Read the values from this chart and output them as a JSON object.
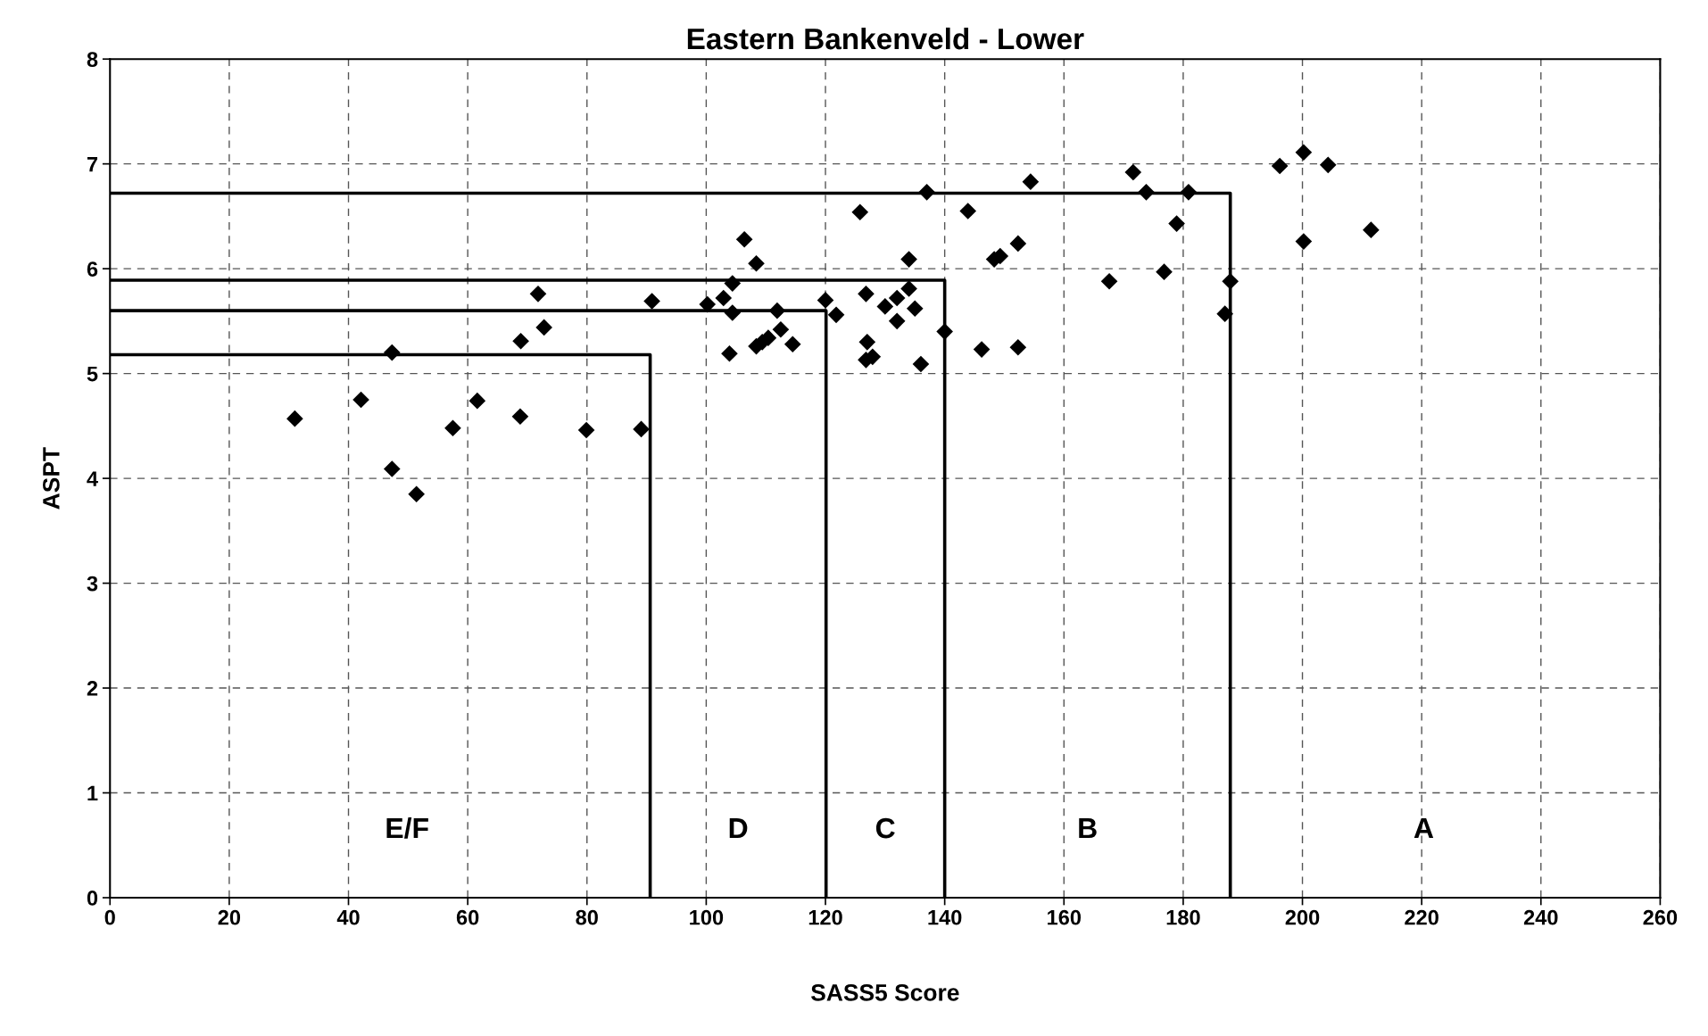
{
  "chart_data": {
    "type": "scatter",
    "title": "Eastern Bankenveld - Lower",
    "xlabel": "SASS5 Score",
    "ylabel": "ASPT",
    "xlim": [
      0,
      260
    ],
    "xticks": [
      0,
      20,
      40,
      60,
      80,
      100,
      120,
      140,
      160,
      180,
      200,
      220,
      240,
      260
    ],
    "ylim": [
      0,
      8
    ],
    "yticks": [
      0,
      1,
      2,
      3,
      4,
      5,
      6,
      7,
      8
    ],
    "grid": true,
    "series": [
      {
        "marker": "diamond",
        "color": "#000000",
        "x": [
          31.0,
          42.1,
          47.3,
          47.3,
          51.4,
          57.5,
          61.6,
          68.8,
          68.9,
          71.8,
          72.8,
          79.9,
          89.1,
          90.9,
          100.2,
          102.9,
          104.4,
          104.4,
          103.9,
          106.4,
          108.4,
          108.4,
          109.4,
          110.4,
          111.9,
          112.5,
          114.5,
          120.0,
          121.8,
          125.8,
          126.8,
          127.0,
          126.8,
          127.9,
          130.0,
          132.0,
          132.0,
          134.0,
          134.0,
          135.0,
          136.0,
          137.0,
          140.0,
          143.9,
          146.2,
          148.3,
          149.3,
          152.3,
          152.3,
          154.4,
          167.6,
          171.6,
          173.8,
          176.8,
          178.9,
          180.9,
          187.0,
          187.9,
          196.2,
          200.2,
          200.2,
          204.3,
          211.5
        ],
        "values": [
          4.57,
          4.75,
          5.2,
          4.09,
          3.85,
          4.48,
          4.74,
          4.59,
          5.31,
          5.76,
          5.44,
          4.46,
          4.47,
          5.69,
          5.66,
          5.72,
          5.86,
          5.58,
          5.19,
          6.28,
          6.05,
          5.26,
          5.3,
          5.34,
          5.6,
          5.42,
          5.28,
          5.7,
          5.56,
          6.54,
          5.76,
          5.3,
          5.13,
          5.16,
          5.64,
          5.72,
          5.5,
          6.09,
          5.81,
          5.62,
          5.09,
          6.73,
          5.4,
          6.55,
          5.23,
          6.09,
          6.12,
          6.24,
          5.25,
          6.83,
          5.88,
          6.92,
          6.73,
          5.97,
          6.43,
          6.73,
          5.57,
          5.88,
          6.98,
          7.11,
          6.26,
          6.99,
          6.37
        ]
      },
      {
        "type": "line",
        "marker": "none",
        "line_style": "solid",
        "color": "#000000",
        "x": [
          0,
          90.6,
          90.6
        ],
        "values": [
          5.18,
          5.18,
          0
        ]
      },
      {
        "type": "line",
        "marker": "none",
        "line_style": "solid",
        "color": "#000000",
        "x": [
          0,
          120.1,
          120.1
        ],
        "values": [
          5.6,
          5.6,
          0
        ]
      },
      {
        "type": "line",
        "marker": "none",
        "line_style": "solid",
        "color": "#000000",
        "x": [
          0,
          140.0,
          140.0
        ],
        "values": [
          5.89,
          5.89,
          0
        ]
      },
      {
        "type": "line",
        "marker": "none",
        "line_style": "solid",
        "color": "#000000",
        "x": [
          0,
          187.9,
          187.9
        ],
        "values": [
          6.72,
          6.72,
          0
        ]
      }
    ],
    "annotations": [
      "E/F",
      "D",
      "C",
      "B",
      "A"
    ]
  }
}
